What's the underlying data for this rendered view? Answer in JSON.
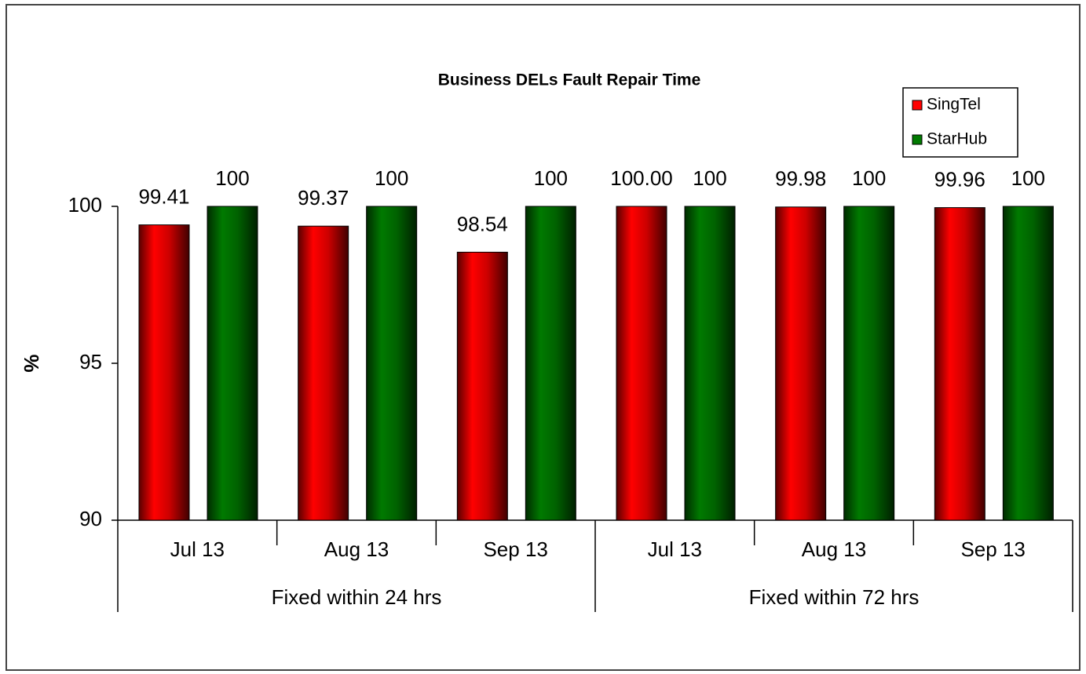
{
  "chart_data": {
    "type": "bar",
    "title": "Business DELs Fault Repair Time",
    "y_label": "%",
    "groups": [
      {
        "label": "Fixed within 24 hrs",
        "categories": [
          "Jul 13",
          "Aug 13",
          "Sep 13"
        ]
      },
      {
        "label": "Fixed within 72 hrs",
        "categories": [
          "Jul 13",
          "Aug 13",
          "Sep 13"
        ]
      }
    ],
    "series": [
      {
        "name": "SingTel",
        "color": "#ff0000",
        "values": [
          99.41,
          99.37,
          98.54,
          100.0,
          99.98,
          99.96
        ],
        "value_labels": [
          "99.41",
          "99.37",
          "98.54",
          "100.00",
          "99.98",
          "99.96"
        ]
      },
      {
        "name": "StarHub",
        "color": "#007a00",
        "values": [
          100,
          100,
          100,
          100,
          100,
          100
        ]
      }
    ],
    "ylim": [
      90,
      100
    ],
    "yticks": [
      90,
      95,
      100
    ],
    "legend": "top-right"
  }
}
